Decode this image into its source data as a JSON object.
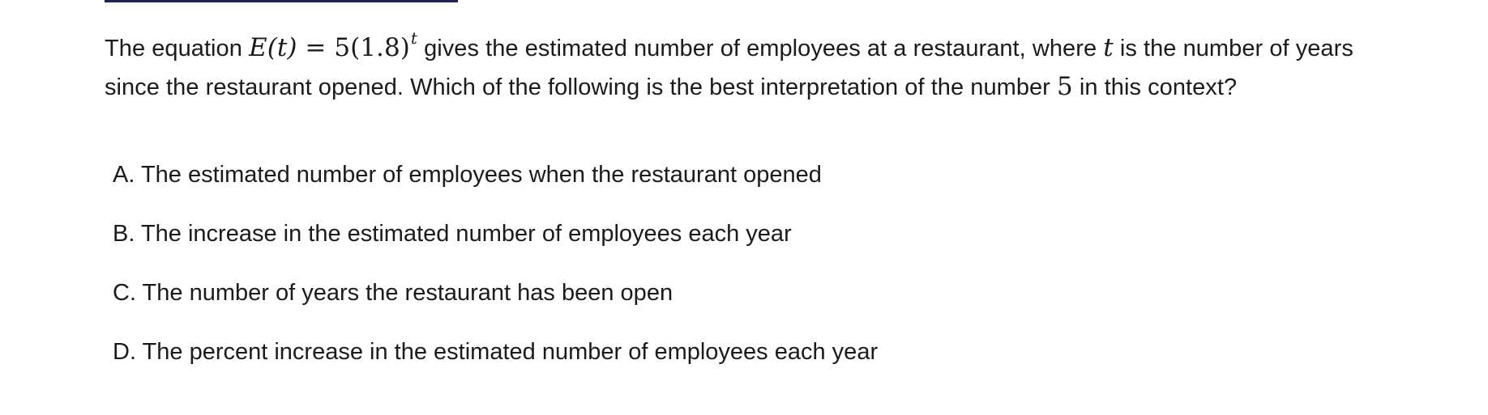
{
  "question": {
    "intro": "The equation",
    "equation": {
      "lhs": "E(t)",
      "equals": "=",
      "coefficient": "5",
      "base": "(1.8)",
      "exponent": "t"
    },
    "mid": "gives the estimated number of employees at a restaurant, where",
    "variable": "t",
    "mid2": "is the number of years since the restaurant opened. Which of the following is the best interpretation of the number",
    "number": "5",
    "end": "in this context?"
  },
  "choices": [
    {
      "letter": "A.",
      "text": "The estimated number of employees when the restaurant opened"
    },
    {
      "letter": "B.",
      "text": "The increase in the estimated number of employees each year"
    },
    {
      "letter": "C.",
      "text": "The number of years the restaurant has been open"
    },
    {
      "letter": "D.",
      "text": "The percent increase in the estimated number of employees each year"
    }
  ],
  "colors": {
    "text": "#1b1b1b",
    "accent_rule": "#1f2350",
    "background": "#ffffff"
  }
}
